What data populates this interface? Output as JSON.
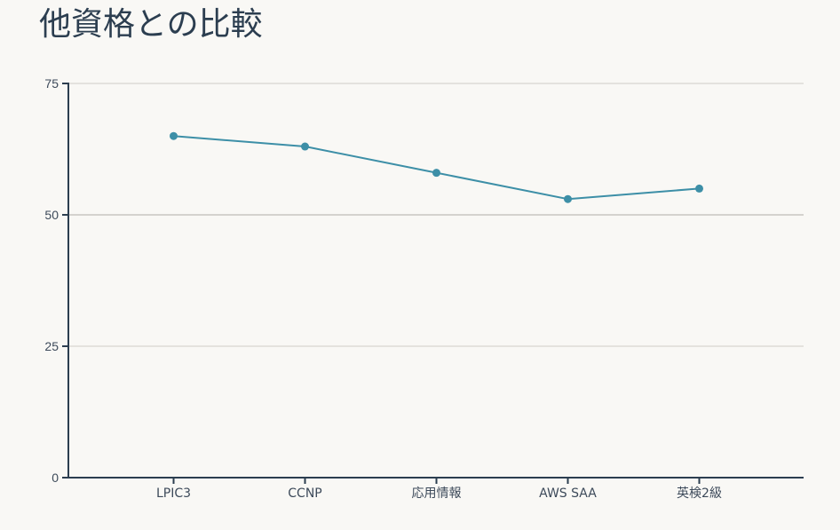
{
  "chart_data": {
    "type": "line",
    "title": "他資格との比較",
    "xlabel": "",
    "ylabel": "",
    "categories": [
      "LPIC3",
      "CCNP",
      "応用情報",
      "AWS SAA",
      "英検2級"
    ],
    "series": [
      {
        "values": [
          65,
          63,
          58,
          53,
          55
        ]
      }
    ],
    "ylim": [
      0,
      75
    ],
    "yticks": [
      0,
      25,
      50,
      75
    ],
    "grid": true,
    "legend": "none"
  },
  "colors": {
    "line": "#3d8fa7",
    "axis": "#2c3e50",
    "grid": "#cfcdc8",
    "grid_major": "#c8c6c1",
    "background": "#f9f8f5"
  }
}
